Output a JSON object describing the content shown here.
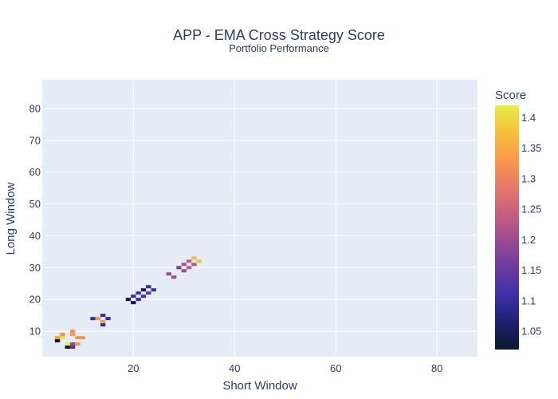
{
  "chart_data": {
    "type": "heatmap",
    "title": "APP - EMA Cross Strategy Score",
    "subtitle": "Portfolio Performance",
    "xlabel": "Short Window",
    "ylabel": "Long Window",
    "xlim": [
      2,
      88
    ],
    "ylim": [
      2,
      89
    ],
    "x_ticks": [
      20,
      40,
      60,
      80
    ],
    "y_ticks": [
      10,
      20,
      30,
      40,
      50,
      60,
      70,
      80
    ],
    "colorbar": {
      "title": "Score",
      "min": 1.02,
      "max": 1.42,
      "ticks": [
        1.05,
        1.1,
        1.15,
        1.2,
        1.25,
        1.3,
        1.35,
        1.4
      ],
      "colorscale": [
        "#0d0887",
        "#46039f",
        "#7201a8",
        "#9c179e",
        "#bd3786",
        "#d8576b",
        "#ed7953",
        "#fb9f3a",
        "#fdca26",
        "#f0f921"
      ],
      "colorscale_plotly": [
        "#0a1a2c",
        "#1e1f6f",
        "#3d30a8",
        "#6a3aa0",
        "#9a4a90",
        "#c65f80",
        "#e87868",
        "#f9994a",
        "#f6bf3a",
        "#e8ee4a"
      ]
    },
    "grid": true,
    "points": [
      {
        "x": 5,
        "y": 7,
        "z": 1.02
      },
      {
        "x": 5,
        "y": 8,
        "z": 1.33
      },
      {
        "x": 6,
        "y": 8,
        "z": 1.41
      },
      {
        "x": 6,
        "y": 9,
        "z": 1.32
      },
      {
        "x": 7,
        "y": 5,
        "z": 1.02
      },
      {
        "x": 7,
        "y": 6,
        "z": 1.42
      },
      {
        "x": 8,
        "y": 5,
        "z": 1.14
      },
      {
        "x": 8,
        "y": 6,
        "z": 1.19
      },
      {
        "x": 8,
        "y": 10,
        "z": 1.32
      },
      {
        "x": 8,
        "y": 9,
        "z": 1.33
      },
      {
        "x": 9,
        "y": 6,
        "z": 1.33
      },
      {
        "x": 9,
        "y": 8,
        "z": 1.33
      },
      {
        "x": 10,
        "y": 8,
        "z": 1.33
      },
      {
        "x": 12,
        "y": 14,
        "z": 1.1
      },
      {
        "x": 13,
        "y": 14,
        "z": 1.33
      },
      {
        "x": 14,
        "y": 15,
        "z": 1.1
      },
      {
        "x": 14,
        "y": 13,
        "z": 1.33
      },
      {
        "x": 14,
        "y": 12,
        "z": 1.1
      },
      {
        "x": 15,
        "y": 14,
        "z": 1.1
      },
      {
        "x": 19,
        "y": 20,
        "z": 1.03
      },
      {
        "x": 20,
        "y": 19,
        "z": 1.03
      },
      {
        "x": 20,
        "y": 21,
        "z": 1.1
      },
      {
        "x": 21,
        "y": 20,
        "z": 1.1
      },
      {
        "x": 21,
        "y": 22,
        "z": 1.12
      },
      {
        "x": 22,
        "y": 21,
        "z": 1.12
      },
      {
        "x": 22,
        "y": 23,
        "z": 1.05
      },
      {
        "x": 23,
        "y": 22,
        "z": 1.14
      },
      {
        "x": 23,
        "y": 24,
        "z": 1.1
      },
      {
        "x": 24,
        "y": 23,
        "z": 1.1
      },
      {
        "x": 27,
        "y": 28,
        "z": 1.2
      },
      {
        "x": 28,
        "y": 27,
        "z": 1.2
      },
      {
        "x": 29,
        "y": 30,
        "z": 1.17
      },
      {
        "x": 30,
        "y": 29,
        "z": 1.2
      },
      {
        "x": 30,
        "y": 31,
        "z": 1.22
      },
      {
        "x": 31,
        "y": 30,
        "z": 1.23
      },
      {
        "x": 31,
        "y": 32,
        "z": 1.24
      },
      {
        "x": 32,
        "y": 31,
        "z": 1.23
      },
      {
        "x": 32,
        "y": 33,
        "z": 1.37
      },
      {
        "x": 33,
        "y": 32,
        "z": 1.37
      }
    ]
  }
}
